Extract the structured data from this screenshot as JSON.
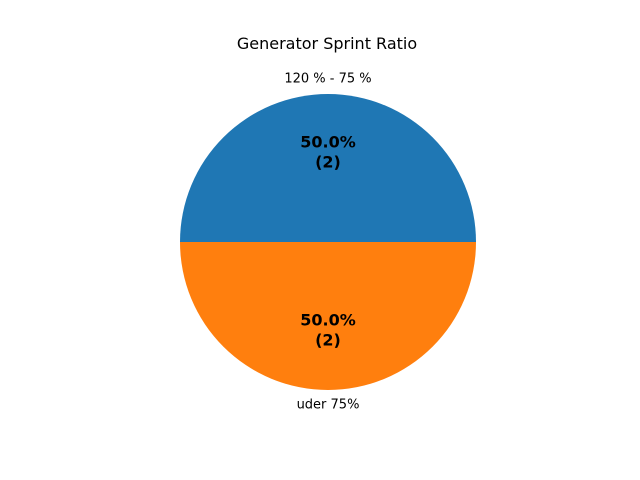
{
  "chart_data": {
    "type": "pie",
    "title": "Generator Sprint Ratio",
    "categories": [
      "120 % - 75 %",
      "uder 75%"
    ],
    "values": [
      2,
      2
    ],
    "percent_labels": [
      "50.0%",
      "50.0%"
    ],
    "count_labels": [
      "(2)",
      "(2)"
    ],
    "colors": [
      "#1f77b4",
      "#ff7f0e"
    ],
    "start_angle_deg": 0,
    "direction": "counterclockwise",
    "legend": "none"
  }
}
